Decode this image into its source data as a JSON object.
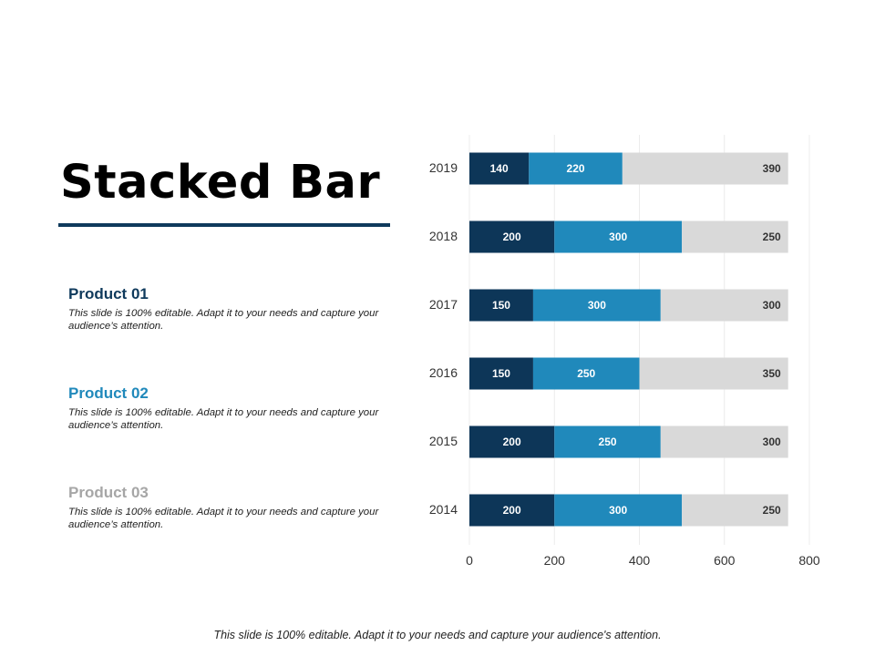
{
  "title": "Stacked Bar",
  "products": [
    {
      "name": "Product 01",
      "description": "This slide is 100% editable. Adapt it to your needs and capture your audience’s attention.",
      "color": "#0f3a5c"
    },
    {
      "name": "Product 02",
      "description": "This slide is 100% editable. Adapt it to your needs and capture your audience’s attention.",
      "color": "#2089bb"
    },
    {
      "name": "Product 03",
      "description": "This slide is 100% editable. Adapt it to your needs and capture your audience’s attention.",
      "color": "#a6a6a6"
    }
  ],
  "footer": "This slide is 100% editable. Adapt it to your needs and capture your audience's attention.",
  "chart_data": {
    "type": "bar",
    "orientation": "horizontal",
    "stacked": true,
    "title": "",
    "xlabel": "",
    "ylabel": "",
    "categories": [
      "2014",
      "2015",
      "2016",
      "2017",
      "2018",
      "2019"
    ],
    "series": [
      {
        "name": "Product 01",
        "values": [
          200,
          200,
          150,
          150,
          200,
          140
        ],
        "color": "#0d3658",
        "label_color": "#ffffff"
      },
      {
        "name": "Product 02",
        "values": [
          300,
          250,
          250,
          300,
          300,
          220
        ],
        "color": "#2089bb",
        "label_color": "#ffffff"
      },
      {
        "name": "Product 03",
        "values": [
          250,
          300,
          350,
          300,
          250,
          390
        ],
        "color": "#d9d9d9",
        "label_color": "#333333"
      }
    ],
    "xlim": [
      0,
      800
    ],
    "xticks": [
      0,
      200,
      400,
      600,
      800
    ],
    "grid": true
  }
}
